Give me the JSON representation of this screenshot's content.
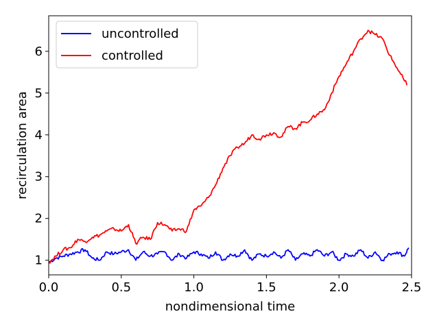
{
  "chart_data": {
    "type": "line",
    "xlabel": "nondimensional time",
    "ylabel": "recirculation area",
    "xlim": [
      0.0,
      2.5
    ],
    "ylim": [
      0.65,
      6.85
    ],
    "x_ticks": [
      "0.0",
      "0.5",
      "1.0",
      "1.5",
      "2.0",
      "2.5"
    ],
    "y_ticks": [
      "1",
      "2",
      "3",
      "4",
      "5",
      "6"
    ],
    "grid": false,
    "legend_position": "upper-left",
    "series": [
      {
        "name": "uncontrolled",
        "color": "#0000ff",
        "x": [
          0.0,
          0.05,
          0.1,
          0.15,
          0.2,
          0.25,
          0.3,
          0.35,
          0.4,
          0.45,
          0.5,
          0.55,
          0.6,
          0.65,
          0.7,
          0.75,
          0.8,
          0.85,
          0.9,
          0.95,
          1.0,
          1.05,
          1.1,
          1.15,
          1.2,
          1.25,
          1.3,
          1.35,
          1.4,
          1.45,
          1.5,
          1.55,
          1.6,
          1.65,
          1.7,
          1.75,
          1.8,
          1.85,
          1.9,
          1.95,
          2.0,
          2.05,
          2.1,
          2.15,
          2.2,
          2.25,
          2.3,
          2.35,
          2.4,
          2.45,
          2.48
        ],
        "y": [
          0.95,
          1.05,
          1.1,
          1.15,
          1.2,
          1.25,
          1.05,
          1.0,
          1.2,
          1.15,
          1.2,
          1.25,
          1.0,
          1.2,
          1.1,
          1.15,
          1.2,
          1.0,
          1.15,
          1.05,
          1.2,
          1.15,
          1.05,
          1.2,
          1.0,
          1.15,
          1.1,
          1.25,
          1.0,
          1.15,
          1.1,
          1.2,
          1.05,
          1.25,
          1.0,
          1.15,
          1.1,
          1.25,
          1.1,
          1.2,
          1.0,
          1.15,
          1.1,
          1.25,
          1.05,
          1.2,
          1.0,
          1.15,
          1.2,
          1.1,
          1.3
        ]
      },
      {
        "name": "controlled",
        "color": "#ff0000",
        "x": [
          0.0,
          0.05,
          0.1,
          0.15,
          0.2,
          0.25,
          0.3,
          0.35,
          0.4,
          0.45,
          0.5,
          0.55,
          0.6,
          0.65,
          0.7,
          0.75,
          0.8,
          0.85,
          0.9,
          0.95,
          1.0,
          1.05,
          1.1,
          1.15,
          1.2,
          1.25,
          1.3,
          1.35,
          1.4,
          1.45,
          1.5,
          1.55,
          1.6,
          1.65,
          1.7,
          1.75,
          1.8,
          1.85,
          1.9,
          1.95,
          2.0,
          2.05,
          2.1,
          2.15,
          2.2,
          2.25,
          2.3,
          2.35,
          2.4,
          2.45,
          2.47
        ],
        "y": [
          0.95,
          1.1,
          1.25,
          1.3,
          1.5,
          1.45,
          1.55,
          1.6,
          1.7,
          1.75,
          1.7,
          1.85,
          1.4,
          1.55,
          1.5,
          1.9,
          1.85,
          1.7,
          1.75,
          1.7,
          2.2,
          2.3,
          2.5,
          2.8,
          3.2,
          3.5,
          3.7,
          3.8,
          4.0,
          3.9,
          4.0,
          4.05,
          3.95,
          4.2,
          4.15,
          4.3,
          4.35,
          4.5,
          4.6,
          5.0,
          5.4,
          5.7,
          6.0,
          6.3,
          6.5,
          6.4,
          6.3,
          5.9,
          5.6,
          5.3,
          5.2
        ]
      }
    ]
  }
}
